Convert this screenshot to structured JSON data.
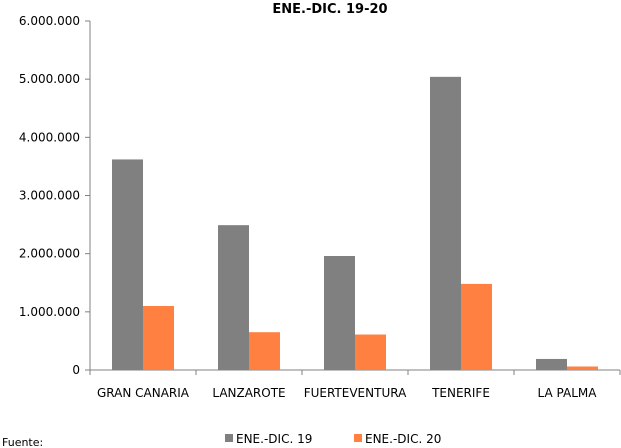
{
  "chart_data": {
    "type": "bar",
    "title": "ENE.-DIC. 19-20",
    "categories": [
      "GRAN CANARIA",
      "LANZAROTE",
      "FUERTEVENTURA",
      "TENERIFE",
      "LA PALMA"
    ],
    "series": [
      {
        "name": "ENE.-DIC. 19",
        "color": "#808080",
        "values": [
          3620000,
          2490000,
          1960000,
          5040000,
          190000
        ]
      },
      {
        "name": "ENE.-DIC. 20",
        "color": "#ff8040",
        "values": [
          1100000,
          650000,
          610000,
          1480000,
          60000
        ]
      }
    ],
    "ylim": [
      0,
      6000000
    ],
    "yticks": [
      0,
      1000000,
      2000000,
      3000000,
      4000000,
      5000000,
      6000000
    ],
    "ytick_labels": [
      "0",
      "1.000.000",
      "2.000.000",
      "3.000.000",
      "4.000.000",
      "5.000.000",
      "6.000.000"
    ],
    "grid": false,
    "legend_position": "bottom"
  },
  "footer": {
    "source_label": "Fuente:"
  }
}
